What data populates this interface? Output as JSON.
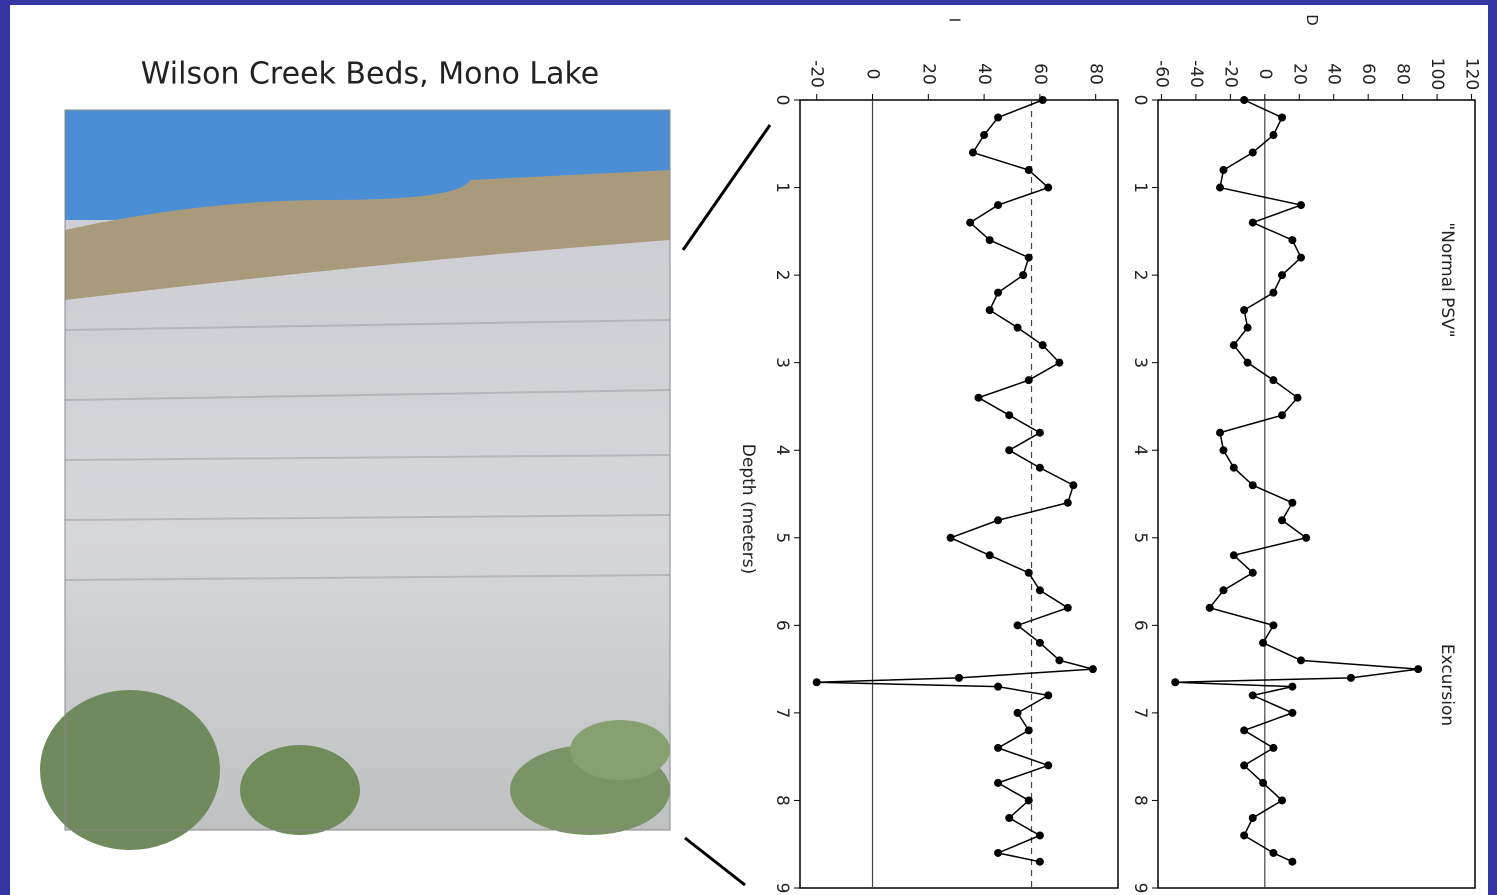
{
  "title": "Wilson Creek Beds, Mono Lake",
  "chart_data": [
    {
      "type": "line",
      "ylabel": "I",
      "xlabel": "Depth (meters)",
      "color": "#000000",
      "x": [
        0,
        0.2,
        0.4,
        0.6,
        0.8,
        1.0,
        1.2,
        1.4,
        1.6,
        1.8,
        2.0,
        2.2,
        2.4,
        2.6,
        2.8,
        3.0,
        3.2,
        3.4,
        3.6,
        3.8,
        4.0,
        4.2,
        4.4,
        4.6,
        4.8,
        5.0,
        5.2,
        5.4,
        5.6,
        5.8,
        6.0,
        6.2,
        6.4,
        6.5,
        6.6,
        6.65,
        6.7,
        6.8,
        7.0,
        7.2,
        7.4,
        7.6,
        7.8,
        8.0,
        8.2,
        8.4,
        8.6,
        8.7
      ],
      "values": [
        61,
        45,
        40,
        36,
        56,
        63,
        45,
        35,
        42,
        56,
        54,
        45,
        42,
        52,
        61,
        67,
        56,
        38,
        49,
        60,
        49,
        60,
        72,
        70,
        45,
        28,
        42,
        56,
        60,
        70,
        52,
        60,
        67,
        79,
        31,
        -20,
        45,
        63,
        52,
        56,
        45,
        63,
        45,
        56,
        49,
        60,
        45,
        60
      ],
      "xlim": [
        0,
        9
      ],
      "xticks": [
        0,
        1,
        2,
        3,
        4,
        5,
        6,
        7,
        8,
        9
      ],
      "ylim": [
        -26,
        88
      ],
      "yticks": [
        -20,
        0,
        20,
        40,
        60,
        80
      ],
      "reference_lines": [
        {
          "value": 0,
          "style": "solid"
        },
        {
          "value": 57,
          "style": "dashed"
        }
      ]
    },
    {
      "type": "line",
      "ylabel": "D",
      "color": "#000000",
      "annotations": [
        "\"Normal PSV\"",
        "Excursion"
      ],
      "x": [
        0,
        0.2,
        0.4,
        0.6,
        0.8,
        1.0,
        1.2,
        1.4,
        1.6,
        1.8,
        2.0,
        2.2,
        2.4,
        2.6,
        2.8,
        3.0,
        3.2,
        3.4,
        3.6,
        3.8,
        4.0,
        4.2,
        4.4,
        4.6,
        4.8,
        5.0,
        5.2,
        5.4,
        5.6,
        5.8,
        6.0,
        6.2,
        6.4,
        6.5,
        6.6,
        6.65,
        6.7,
        6.8,
        7.0,
        7.2,
        7.4,
        7.6,
        7.8,
        8.0,
        8.2,
        8.4,
        8.6,
        8.7
      ],
      "values": [
        -12,
        10,
        5,
        -7,
        -24,
        -26,
        21,
        -7,
        16,
        21,
        10,
        5,
        -12,
        -10,
        -18,
        -10,
        5,
        19,
        10,
        -26,
        -24,
        -18,
        -7,
        16,
        10,
        24,
        -18,
        -7,
        -24,
        -32,
        5,
        -1,
        21,
        89,
        50,
        -52,
        16,
        -7,
        16,
        -12,
        5,
        -12,
        -1,
        10,
        -7,
        -12,
        5,
        16
      ],
      "xlim": [
        0,
        9
      ],
      "xticks": [
        0,
        1,
        2,
        3,
        4,
        5,
        6,
        7,
        8,
        9
      ],
      "ylim": [
        -62,
        122
      ],
      "yticks": [
        -60,
        -40,
        -20,
        0,
        20,
        40,
        60,
        80,
        100,
        120
      ],
      "reference_lines": [
        {
          "value": 0,
          "style": "solid"
        }
      ]
    }
  ]
}
